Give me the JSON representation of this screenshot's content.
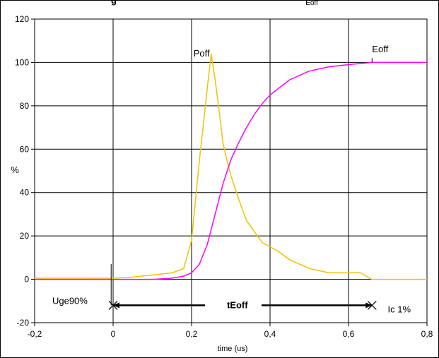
{
  "chart_data": {
    "type": "line",
    "title": "g",
    "title_subscript": "Eoff",
    "xlabel": "time (us)",
    "ylabel": "%",
    "xlim": [
      -0.2,
      0.8
    ],
    "ylim": [
      -20,
      120
    ],
    "x_ticks": [
      -0.2,
      0,
      0.2,
      0.4,
      0.6,
      0.8
    ],
    "x_tick_labels": [
      "-0,2",
      "0",
      "0,2",
      "0,4",
      "0,6",
      "0,8"
    ],
    "y_ticks": [
      -20,
      0,
      20,
      40,
      60,
      80,
      100,
      120
    ],
    "y_tick_labels": [
      "-20",
      "0",
      "20",
      "40",
      "60",
      "80",
      "100",
      "120"
    ],
    "grid": {
      "horizontal": true,
      "vertical": true
    },
    "legend": "none",
    "colors": {
      "poff": "#f2c200",
      "eoff": "#ff00ff",
      "grid": "#000000",
      "arrow": "#000000"
    },
    "series": [
      {
        "label": "Poff",
        "x": [
          -0.2,
          -0.1,
          0.0,
          0.05,
          0.1,
          0.15,
          0.18,
          0.2,
          0.22,
          0.24,
          0.25,
          0.26,
          0.27,
          0.28,
          0.29,
          0.3,
          0.32,
          0.34,
          0.36,
          0.38,
          0.4,
          0.42,
          0.45,
          0.5,
          0.55,
          0.6,
          0.63,
          0.66,
          0.7,
          0.8
        ],
        "y": [
          0.5,
          0.5,
          0.5,
          1,
          2,
          3,
          5,
          18,
          55,
          88,
          104,
          92,
          78,
          63,
          55,
          48,
          37,
          27,
          22,
          17,
          15,
          13,
          9,
          5,
          3,
          3,
          3,
          0,
          0,
          0
        ]
      },
      {
        "label": "Eoff",
        "x": [
          -0.2,
          -0.1,
          0.0,
          0.1,
          0.15,
          0.18,
          0.2,
          0.22,
          0.24,
          0.26,
          0.28,
          0.3,
          0.32,
          0.34,
          0.36,
          0.38,
          0.4,
          0.45,
          0.5,
          0.55,
          0.6,
          0.66,
          0.7,
          0.8
        ],
        "y": [
          0,
          0,
          0,
          0,
          0.5,
          1.5,
          3,
          7,
          16,
          30,
          44,
          55,
          63,
          70,
          76,
          81,
          85,
          92,
          96,
          98,
          99,
          100,
          100,
          100
        ]
      }
    ],
    "annotations": [
      {
        "text": "Poff",
        "x": 0.205,
        "y": 104
      },
      {
        "text": "Eoff",
        "x": 0.66,
        "y": 106
      },
      {
        "text": "Uge90%",
        "x": -0.155,
        "y": -10
      },
      {
        "text": "tEoff",
        "x": 0.29,
        "y": -12
      },
      {
        "text": "Ic 1%",
        "x": 0.7,
        "y": -14
      }
    ],
    "tEoff_arrow": {
      "x_start": 0.0,
      "x_end": 0.66,
      "y": -12
    },
    "markers": {
      "uge90_line": {
        "x": -0.005,
        "y_from": 7,
        "y_to": -12
      },
      "eoff_line": {
        "x": 0.66,
        "y_from": 100,
        "y_to": 102
      }
    }
  }
}
